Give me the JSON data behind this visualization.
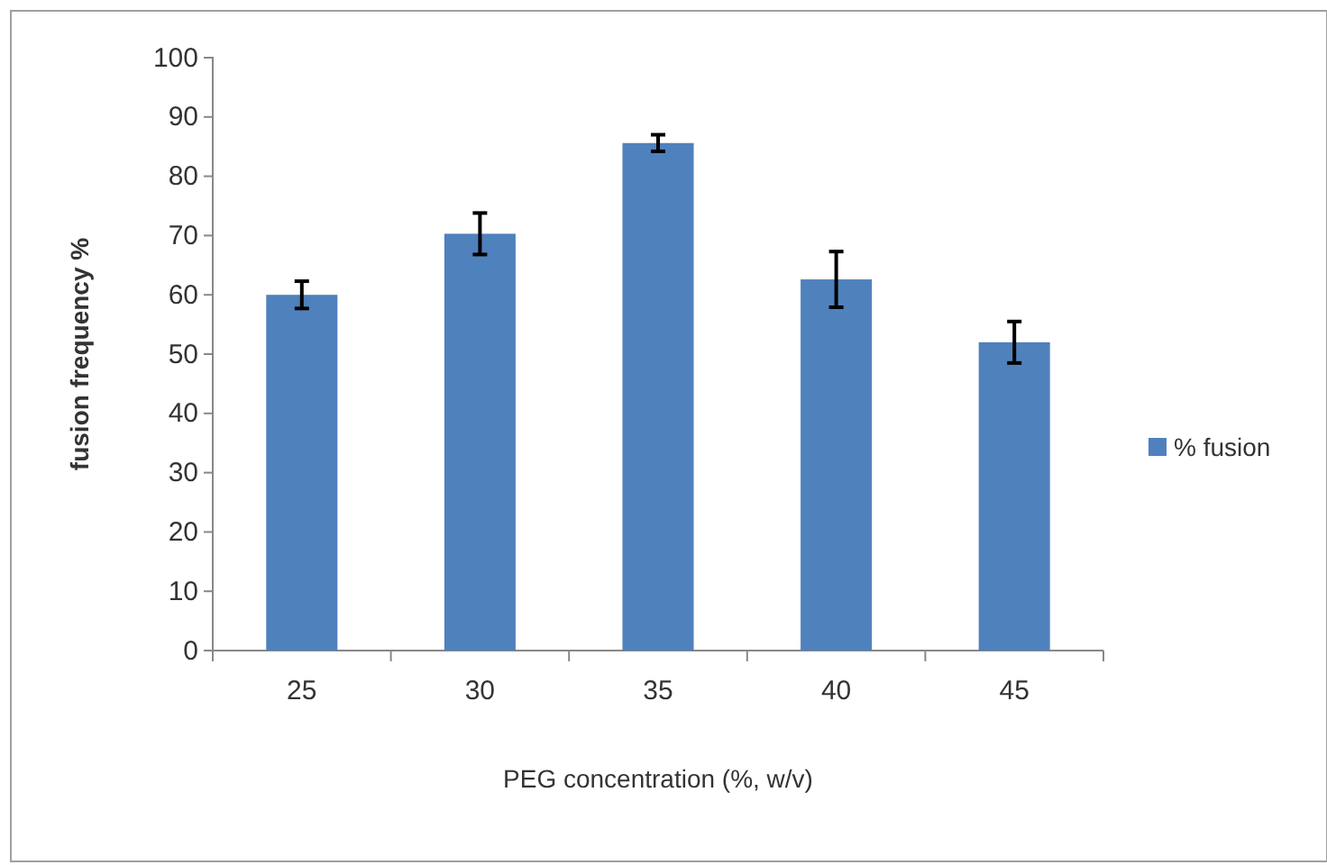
{
  "chart_data": {
    "type": "bar",
    "xlabel": "PEG concentration (%, w/v)",
    "ylabel": "fusion frequency %",
    "categories": [
      "25",
      "30",
      "35",
      "40",
      "45"
    ],
    "series": [
      {
        "name": "% fusion",
        "color": "#4f81bd",
        "values": [
          60,
          70.3,
          85.6,
          62.6,
          52
        ],
        "errors": [
          2.3,
          3.5,
          1.4,
          4.7,
          3.5
        ]
      }
    ],
    "ylim": [
      0,
      100
    ],
    "yticks": [
      0,
      10,
      20,
      30,
      40,
      50,
      60,
      70,
      80,
      90,
      100
    ],
    "grid": false,
    "legend": "right"
  }
}
